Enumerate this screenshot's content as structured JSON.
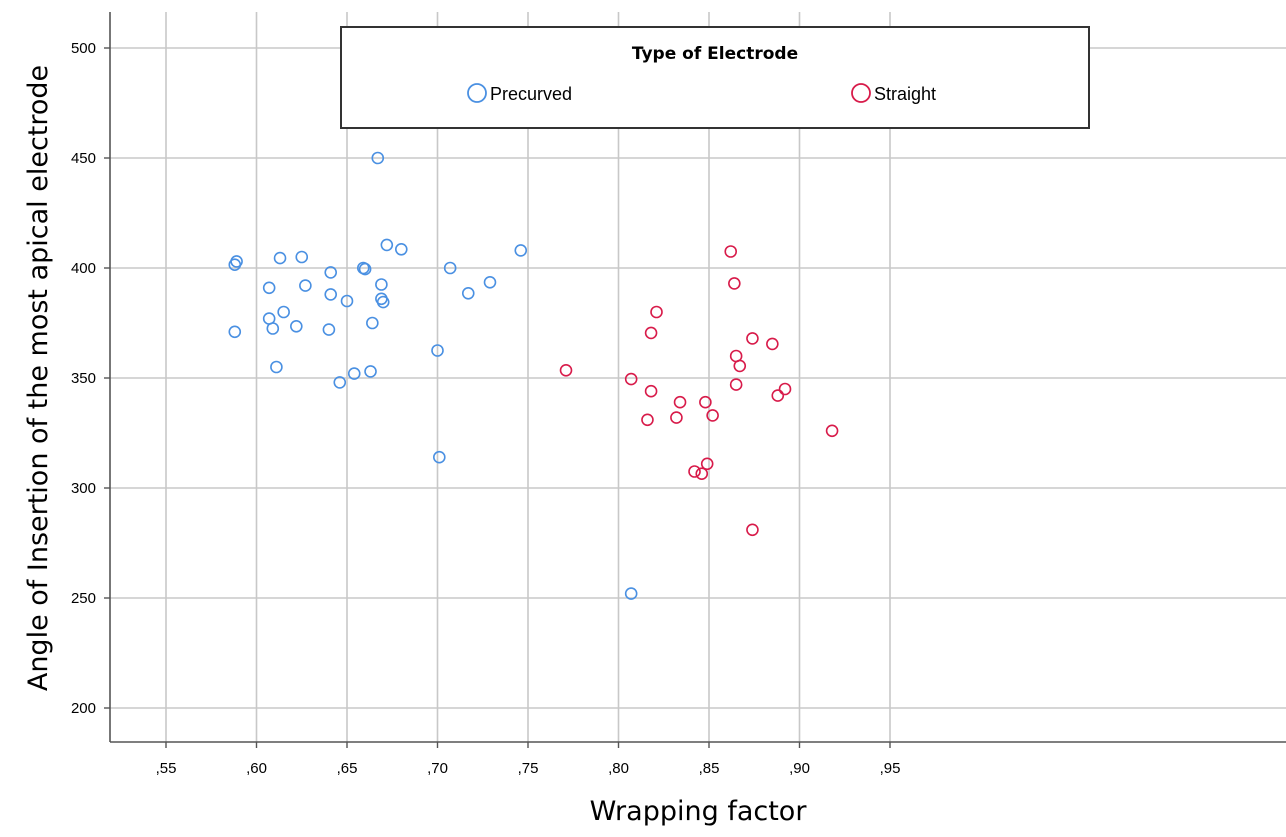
{
  "chart_data": {
    "type": "scatter",
    "xlabel": "Wrapping factor",
    "ylabel": "Angle of Insertion of the most apical electrode",
    "xlim": [
      0.525,
      0.97
    ],
    "ylim": [
      185,
      515
    ],
    "grid": true,
    "x_ticks": [
      0.55,
      0.6,
      0.65,
      0.7,
      0.75,
      0.8,
      0.85,
      0.9,
      0.95
    ],
    "x_tick_labels": [
      ",55",
      ",60",
      ",65",
      ",70",
      ",75",
      ",80",
      ",85",
      ",90",
      ",95"
    ],
    "y_ticks": [
      200,
      250,
      300,
      350,
      400,
      450,
      500
    ],
    "y_tick_labels": [
      "200",
      "250",
      "300",
      "350",
      "400",
      "450",
      "500"
    ],
    "legend": {
      "title": "Type of Electrode",
      "position": "top-center"
    },
    "series": [
      {
        "name": "Precurved",
        "color": "#4a90e2",
        "marker": "open-circle",
        "points": [
          [
            0.588,
            401.5
          ],
          [
            0.589,
            403
          ],
          [
            0.588,
            371
          ],
          [
            0.607,
            391
          ],
          [
            0.607,
            377
          ],
          [
            0.609,
            372.5
          ],
          [
            0.611,
            355
          ],
          [
            0.613,
            404.5
          ],
          [
            0.615,
            380
          ],
          [
            0.622,
            373.5
          ],
          [
            0.625,
            405
          ],
          [
            0.627,
            392
          ],
          [
            0.64,
            372
          ],
          [
            0.641,
            398
          ],
          [
            0.641,
            388
          ],
          [
            0.646,
            348
          ],
          [
            0.65,
            385
          ],
          [
            0.654,
            352
          ],
          [
            0.659,
            400
          ],
          [
            0.66,
            399.5
          ],
          [
            0.663,
            353
          ],
          [
            0.664,
            375
          ],
          [
            0.667,
            450
          ],
          [
            0.669,
            392.5
          ],
          [
            0.669,
            386
          ],
          [
            0.67,
            384.5
          ],
          [
            0.672,
            410.5
          ],
          [
            0.68,
            408.5
          ],
          [
            0.7,
            362.5
          ],
          [
            0.701,
            314
          ],
          [
            0.707,
            400
          ],
          [
            0.717,
            388.5
          ],
          [
            0.729,
            393.5
          ],
          [
            0.746,
            408
          ],
          [
            0.807,
            252
          ]
        ]
      },
      {
        "name": "Straight",
        "color": "#d81b4a",
        "marker": "open-circle",
        "points": [
          [
            0.771,
            353.5
          ],
          [
            0.807,
            349.5
          ],
          [
            0.816,
            331
          ],
          [
            0.818,
            344
          ],
          [
            0.818,
            370.5
          ],
          [
            0.821,
            380
          ],
          [
            0.832,
            332
          ],
          [
            0.834,
            339
          ],
          [
            0.842,
            307.5
          ],
          [
            0.846,
            306.5
          ],
          [
            0.848,
            339
          ],
          [
            0.849,
            311
          ],
          [
            0.852,
            333
          ],
          [
            0.862,
            407.5
          ],
          [
            0.864,
            393
          ],
          [
            0.865,
            360
          ],
          [
            0.865,
            347
          ],
          [
            0.867,
            355.5
          ],
          [
            0.874,
            368
          ],
          [
            0.874,
            281
          ],
          [
            0.885,
            365.5
          ],
          [
            0.888,
            342
          ],
          [
            0.892,
            345
          ],
          [
            0.918,
            326
          ]
        ]
      }
    ]
  }
}
